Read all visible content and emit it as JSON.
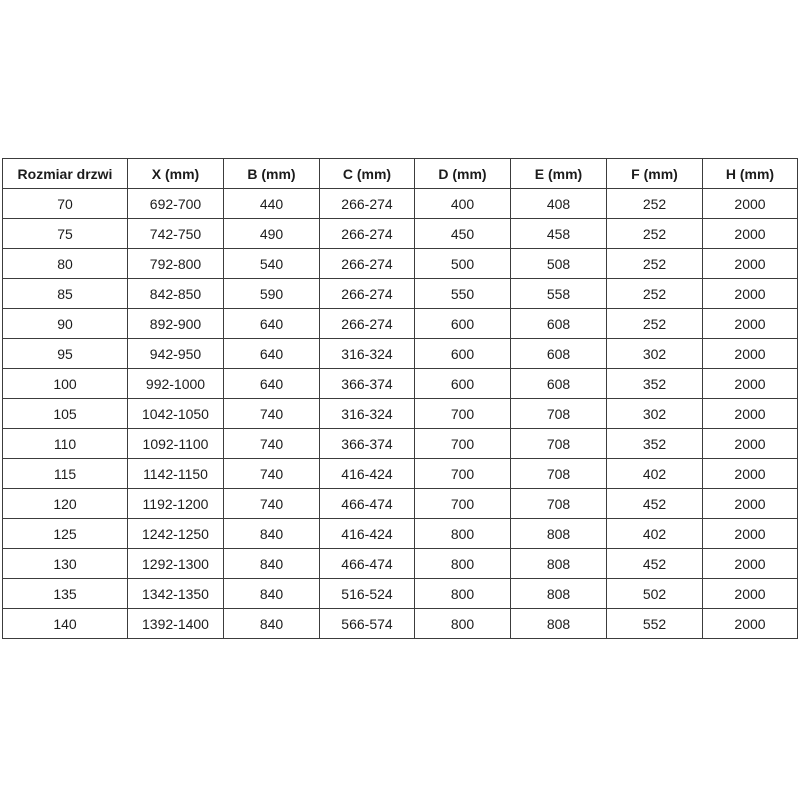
{
  "colors": {
    "background": "#ffffff",
    "border": "#3c3c3c",
    "text": "#1c1c1c"
  },
  "chart_data": {
    "type": "table",
    "columns": [
      "Rozmiar drzwi",
      "X (mm)",
      "B (mm)",
      "C (mm)",
      "D (mm)",
      "E (mm)",
      "F (mm)",
      "H (mm)"
    ],
    "rows": [
      [
        "70",
        "692-700",
        "440",
        "266-274",
        "400",
        "408",
        "252",
        "2000"
      ],
      [
        "75",
        "742-750",
        "490",
        "266-274",
        "450",
        "458",
        "252",
        "2000"
      ],
      [
        "80",
        "792-800",
        "540",
        "266-274",
        "500",
        "508",
        "252",
        "2000"
      ],
      [
        "85",
        "842-850",
        "590",
        "266-274",
        "550",
        "558",
        "252",
        "2000"
      ],
      [
        "90",
        "892-900",
        "640",
        "266-274",
        "600",
        "608",
        "252",
        "2000"
      ],
      [
        "95",
        "942-950",
        "640",
        "316-324",
        "600",
        "608",
        "302",
        "2000"
      ],
      [
        "100",
        "992-1000",
        "640",
        "366-374",
        "600",
        "608",
        "352",
        "2000"
      ],
      [
        "105",
        "1042-1050",
        "740",
        "316-324",
        "700",
        "708",
        "302",
        "2000"
      ],
      [
        "110",
        "1092-1100",
        "740",
        "366-374",
        "700",
        "708",
        "352",
        "2000"
      ],
      [
        "115",
        "1142-1150",
        "740",
        "416-424",
        "700",
        "708",
        "402",
        "2000"
      ],
      [
        "120",
        "1192-1200",
        "740",
        "466-474",
        "700",
        "708",
        "452",
        "2000"
      ],
      [
        "125",
        "1242-1250",
        "840",
        "416-424",
        "800",
        "808",
        "402",
        "2000"
      ],
      [
        "130",
        "1292-1300",
        "840",
        "466-474",
        "800",
        "808",
        "452",
        "2000"
      ],
      [
        "135",
        "1342-1350",
        "840",
        "516-524",
        "800",
        "808",
        "502",
        "2000"
      ],
      [
        "140",
        "1392-1400",
        "840",
        "566-574",
        "800",
        "808",
        "552",
        "2000"
      ]
    ],
    "layout_hints": {
      "grid": "full-borders",
      "header_row_bold": true,
      "first_column_wider": true
    }
  }
}
